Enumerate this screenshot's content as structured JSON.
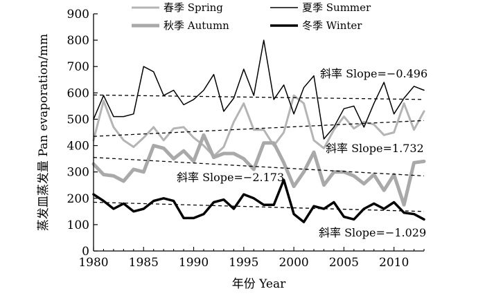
{
  "chart_data": {
    "type": "line",
    "xlabel": "年份 Year",
    "ylabel": "蒸发皿蒸发量 Pan evaporation/mm",
    "xlim": [
      1980,
      2013
    ],
    "ylim": [
      0,
      900
    ],
    "x_ticks": [
      "1980",
      "1985",
      "1990",
      "1995",
      "2000",
      "2005",
      "2010"
    ],
    "y_ticks": [
      "0",
      "100",
      "200",
      "300",
      "400",
      "500",
      "600",
      "700",
      "800",
      "900"
    ],
    "grid": false,
    "legend_position": "top",
    "x": [
      1980,
      1981,
      1982,
      1983,
      1984,
      1985,
      1986,
      1987,
      1988,
      1989,
      1990,
      1991,
      1992,
      1993,
      1994,
      1995,
      1996,
      1997,
      1998,
      1999,
      2000,
      2001,
      2002,
      2003,
      2004,
      2005,
      2006,
      2007,
      2008,
      2009,
      2010,
      2011,
      2012,
      2013
    ],
    "series": [
      {
        "name": "春季 Spring",
        "color": "#b4b4b4",
        "width": 3,
        "values": [
          420,
          570,
          470,
          420,
          395,
          430,
          470,
          420,
          465,
          470,
          430,
          400,
          360,
          395,
          490,
          560,
          460,
          460,
          400,
          450,
          590,
          560,
          420,
          390,
          460,
          510,
          465,
          490,
          480,
          440,
          450,
          560,
          460,
          530
        ],
        "trend": {
          "start": 435,
          "end": 495,
          "label": "斜率 Slope=1.732"
        }
      },
      {
        "name": "夏季 Summer",
        "color": "#000000",
        "width": 1.5,
        "values": [
          500,
          590,
          510,
          510,
          520,
          700,
          680,
          590,
          610,
          555,
          575,
          610,
          670,
          530,
          580,
          690,
          590,
          800,
          575,
          630,
          520,
          620,
          665,
          425,
          470,
          540,
          550,
          470,
          560,
          640,
          520,
          580,
          625,
          610
        ],
        "trend": {
          "start": 592,
          "end": 575,
          "label": "斜率 Slope=−0.496"
        }
      },
      {
        "name": "秋季 Autumn",
        "color": "#a9a9a9",
        "width": 5,
        "values": [
          330,
          290,
          285,
          265,
          310,
          300,
          400,
          390,
          350,
          380,
          340,
          440,
          355,
          370,
          370,
          350,
          310,
          410,
          410,
          335,
          245,
          300,
          375,
          250,
          300,
          300,
          285,
          255,
          290,
          230,
          290,
          175,
          335,
          340
        ],
        "trend": {
          "start": 355,
          "end": 285,
          "label": "斜率 Slope=−2.173"
        }
      },
      {
        "name": "冬季 Winter",
        "color": "#000000",
        "width": 3.5,
        "values": [
          215,
          190,
          160,
          180,
          150,
          160,
          190,
          200,
          190,
          125,
          125,
          140,
          185,
          195,
          160,
          215,
          200,
          175,
          175,
          270,
          140,
          110,
          170,
          160,
          185,
          130,
          120,
          160,
          180,
          160,
          185,
          145,
          140,
          120
        ],
        "trend": {
          "start": 185,
          "end": 150,
          "label": "斜率 Slope=−1.029"
        }
      }
    ]
  }
}
